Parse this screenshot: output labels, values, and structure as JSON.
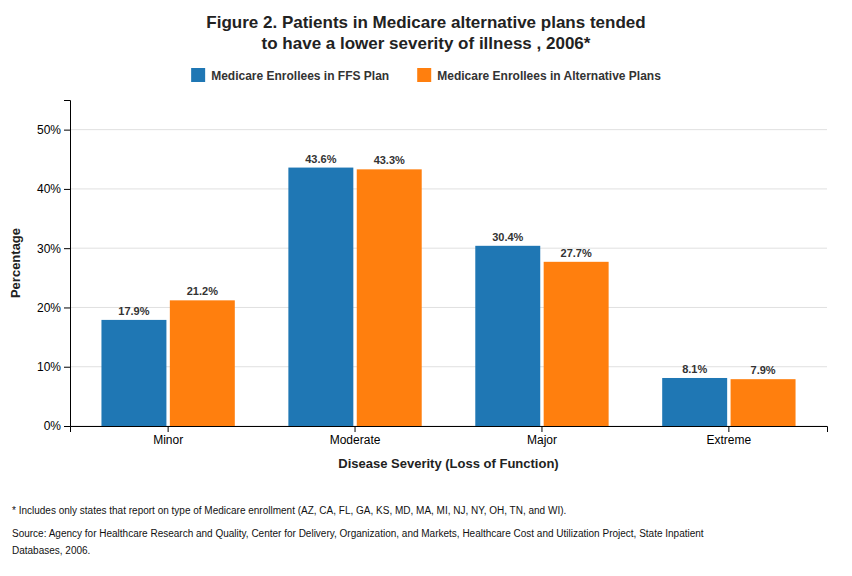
{
  "chart_data": {
    "type": "bar",
    "title": [
      "Figure 2. Patients in Medicare alternative plans tended",
      "to have a lower severity of illness , 2006*"
    ],
    "categories": [
      "Minor",
      "Moderate",
      "Major",
      "Extreme"
    ],
    "series": [
      {
        "name": "Medicare Enrollees in FFS Plan",
        "values": [
          17.9,
          43.6,
          30.4,
          8.1
        ],
        "value_labels": [
          "17.9%",
          "43.6%",
          "30.4%",
          "8.1%"
        ]
      },
      {
        "name": "Medicare Enrollees in Alternative Plans",
        "values": [
          21.2,
          43.3,
          27.7,
          7.9
        ],
        "value_labels": [
          "21.2%",
          "43.3%",
          "27.7%",
          "7.9%"
        ]
      }
    ],
    "xlabel": "Disease Severity (Loss of Function)",
    "ylabel": "Percentage",
    "ylim": [
      0,
      55
    ],
    "yticks": [
      {
        "value": 0,
        "label": "0%"
      },
      {
        "value": 10,
        "label": "10%"
      },
      {
        "value": 20,
        "label": "20%"
      },
      {
        "value": 30,
        "label": "30%"
      },
      {
        "value": 40,
        "label": "40%"
      },
      {
        "value": 50,
        "label": "50%"
      }
    ],
    "grid": true,
    "legend": "top",
    "data_labels": true,
    "annotations": [
      "* Includes only states that report on type of Medicare enrollment (AZ, CA, FL, GA, KS, MD, MA, MI, NJ, NY, OH, TN, and WI).",
      "Source: Agency for Healthcare Research and Quality, Center for Delivery, Organization, and Markets, Healthcare Cost and Utilization Project, State Inpatient",
      "Databases, 2006."
    ]
  }
}
